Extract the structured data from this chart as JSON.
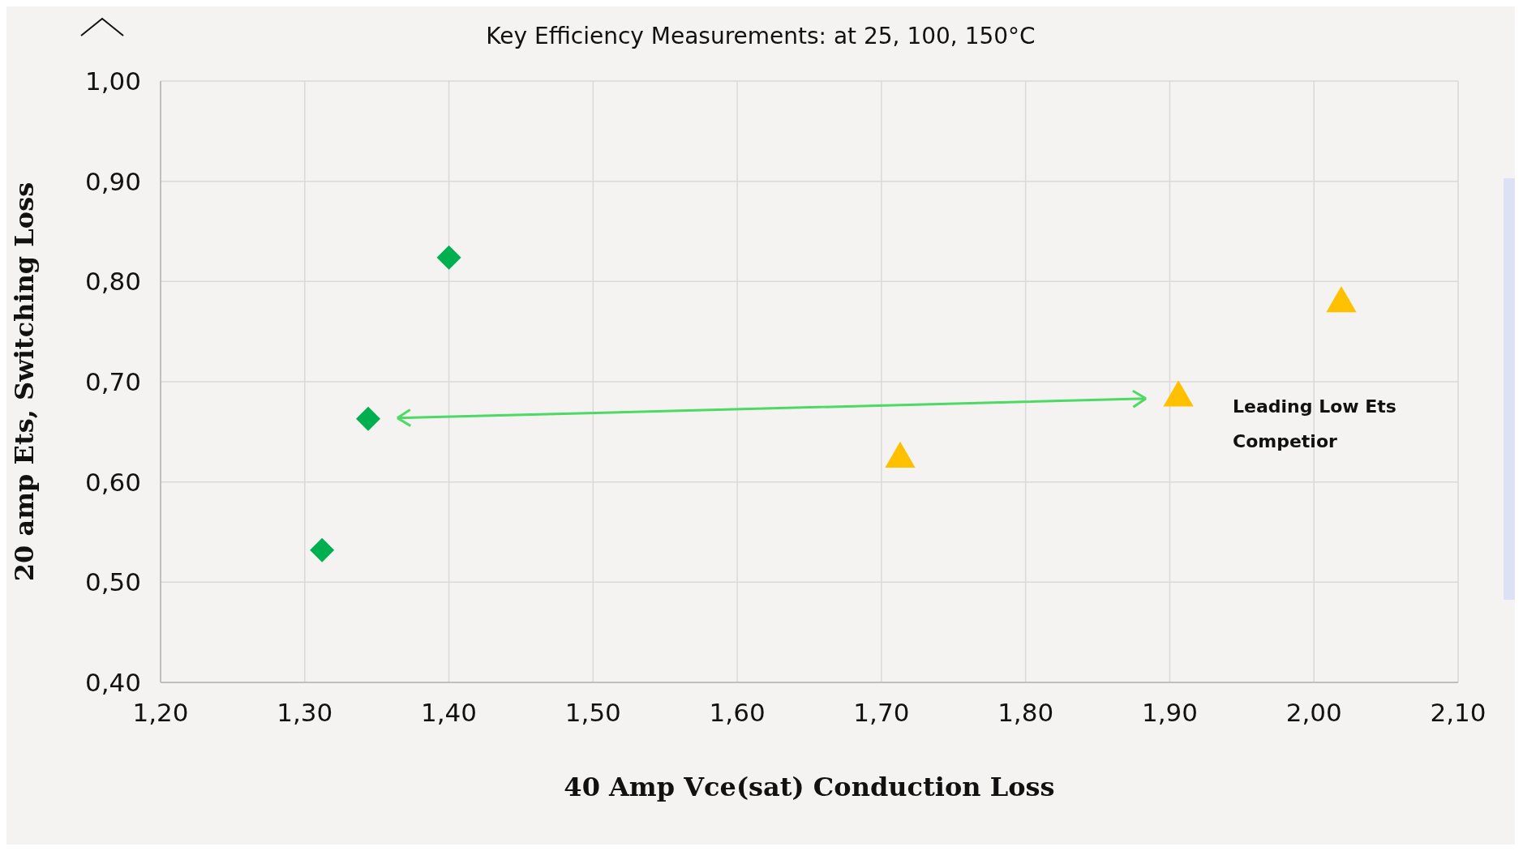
{
  "chart_data": {
    "type": "scatter",
    "title": "Key Efficiency Measurements: at 25, 100, 150°C",
    "xlabel": "40 Amp Vce(sat) Conduction Loss",
    "ylabel": "20 amp Ets, Switching Loss",
    "series": [
      {
        "color": "#00b050",
        "marker": "diamond",
        "x": [
          1.312,
          1.344,
          1.4
        ],
        "values": [
          0.532,
          0.663,
          0.824
        ]
      },
      {
        "color": "#ffc000",
        "marker": "triangle",
        "x": [
          1.713,
          1.906,
          2.019
        ],
        "values": [
          0.623,
          0.684,
          0.778
        ]
      }
    ],
    "xlim": [
      1.2,
      2.1
    ],
    "xticks": [
      {
        "value": 1.2,
        "label": "1,20"
      },
      {
        "value": 1.3,
        "label": "1,30"
      },
      {
        "value": 1.4,
        "label": "1,40"
      },
      {
        "value": 1.5,
        "label": "1,50"
      },
      {
        "value": 1.6,
        "label": "1,60"
      },
      {
        "value": 1.7,
        "label": "1,70"
      },
      {
        "value": 1.8,
        "label": "1,80"
      },
      {
        "value": 1.9,
        "label": "1,90"
      },
      {
        "value": 2.0,
        "label": "2,00"
      },
      {
        "value": 2.1,
        "label": "2,10"
      }
    ],
    "ylim": [
      0.4,
      1.0
    ],
    "yticks": [
      {
        "value": 0.4,
        "label": "0,40"
      },
      {
        "value": 0.5,
        "label": "0,50"
      },
      {
        "value": 0.6,
        "label": "0,60"
      },
      {
        "value": 0.7,
        "label": "0,70"
      },
      {
        "value": 0.8,
        "label": "0,80"
      },
      {
        "value": 0.9,
        "label": "0,90"
      },
      {
        "value": 1.0,
        "label": "1,00"
      }
    ],
    "grid": true,
    "annotations": [
      "Leading Low Ets Competior"
    ]
  }
}
